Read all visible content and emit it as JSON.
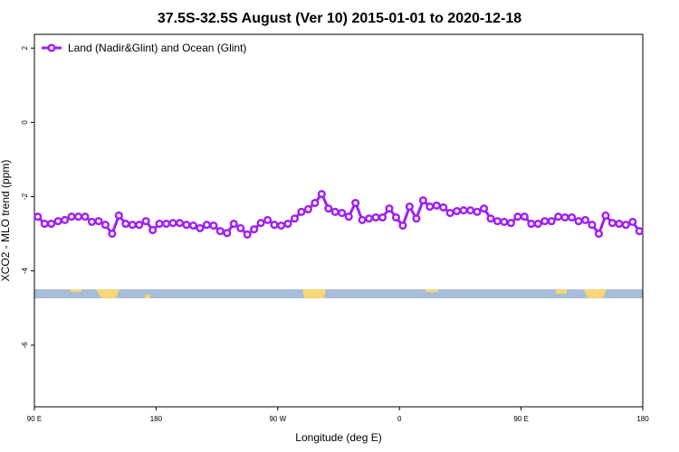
{
  "chart_data": {
    "type": "line",
    "title": "37.5S-32.5S August (Ver 10)   2015-01-01 to 2020-12-18",
    "x_label": "Longitude (deg E)",
    "y_label": "XCO2 - MLO trend (ppm)",
    "xlim": [
      90,
      540
    ],
    "ylim": [
      -7.66,
      2.37
    ],
    "xticks": [
      {
        "value": 90,
        "label": "90 E"
      },
      {
        "value": 180,
        "label": "180"
      },
      {
        "value": 270,
        "label": "90 W"
      },
      {
        "value": 360,
        "label": "0"
      },
      {
        "value": 450,
        "label": "90 E"
      },
      {
        "value": 540,
        "label": "180"
      }
    ],
    "yticks": [
      2,
      0,
      -2,
      -4,
      -6
    ],
    "legend": "topleft",
    "x": [
      92.5,
      97.5,
      102.5,
      107.5,
      112.5,
      117.5,
      122.5,
      127.5,
      132.5,
      137.5,
      142.5,
      147.5,
      152.5,
      157.5,
      162.5,
      167.5,
      172.5,
      177.5,
      182.5,
      187.5,
      192.5,
      197.5,
      202.5,
      207.5,
      212.5,
      217.5,
      222.5,
      227.5,
      232.5,
      237.5,
      242.5,
      247.5,
      252.5,
      257.5,
      262.5,
      267.5,
      272.5,
      277.5,
      282.5,
      287.5,
      292.5,
      297.5,
      302.5,
      307.5,
      312.5,
      317.5,
      322.5,
      327.5,
      332.5,
      337.5,
      342.5,
      347.5,
      352.5,
      357.5,
      362.5,
      367.5,
      372.5,
      377.5,
      382.5,
      387.5,
      392.5,
      397.5,
      402.5,
      407.5,
      412.5,
      417.5,
      422.5,
      427.5,
      432.5,
      437.5,
      442.5,
      447.5,
      452.5,
      457.5,
      462.5,
      467.5,
      472.5,
      477.5,
      482.5,
      487.5,
      492.5,
      497.5,
      502.5,
      507.5,
      512.5,
      517.5,
      522.5,
      527.5,
      532.5,
      537.5
    ],
    "series": [
      {
        "name": "Land (Nadir&Glint) and Ocean (Glint)",
        "color": "#a020f0",
        "values": [
          -2.54,
          -2.73,
          -2.73,
          -2.66,
          -2.63,
          -2.54,
          -2.54,
          -2.54,
          -2.68,
          -2.66,
          -2.76,
          -3.0,
          -2.51,
          -2.73,
          -2.76,
          -2.76,
          -2.66,
          -2.9,
          -2.73,
          -2.73,
          -2.71,
          -2.71,
          -2.76,
          -2.78,
          -2.85,
          -2.76,
          -2.78,
          -2.93,
          -2.98,
          -2.73,
          -2.85,
          -3.02,
          -2.88,
          -2.71,
          -2.63,
          -2.76,
          -2.78,
          -2.73,
          -2.59,
          -2.41,
          -2.34,
          -2.17,
          -1.93,
          -2.32,
          -2.41,
          -2.44,
          -2.54,
          -2.17,
          -2.63,
          -2.59,
          -2.56,
          -2.56,
          -2.32,
          -2.56,
          -2.78,
          -2.27,
          -2.59,
          -2.1,
          -2.27,
          -2.24,
          -2.29,
          -2.44,
          -2.39,
          -2.37,
          -2.37,
          -2.41,
          -2.32,
          -2.59,
          -2.66,
          -2.68,
          -2.71,
          -2.54,
          -2.54,
          -2.73,
          -2.73,
          -2.66,
          -2.66,
          -2.54,
          -2.56,
          -2.56,
          -2.66,
          -2.63,
          -2.76,
          -3.0,
          -2.51,
          -2.71,
          -2.73,
          -2.76,
          -2.68,
          -2.93
        ]
      }
    ]
  }
}
